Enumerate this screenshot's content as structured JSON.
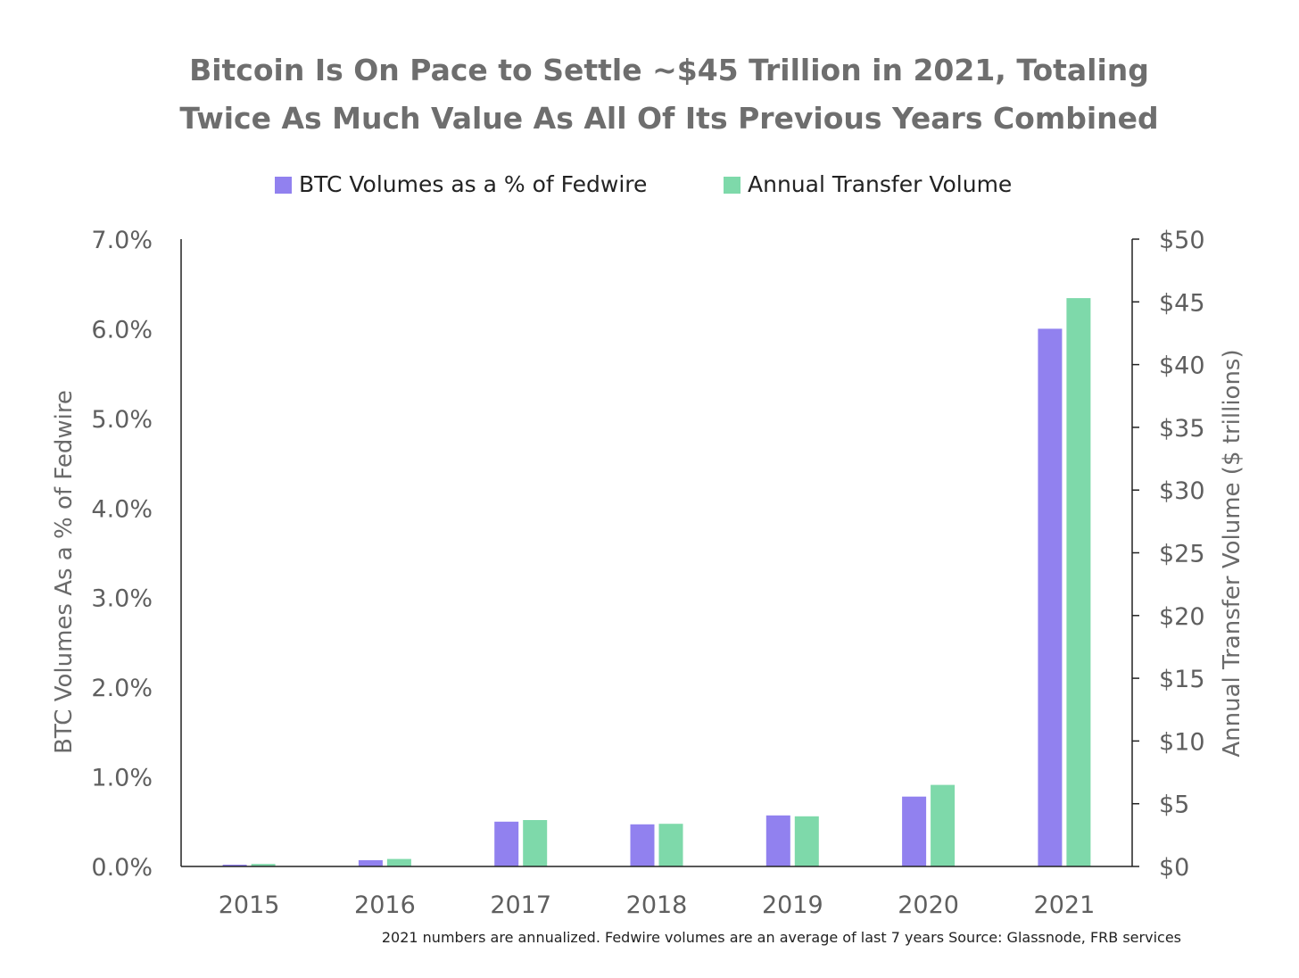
{
  "chart_data": {
    "type": "bar",
    "title_lines": [
      "Bitcoin Is On Pace to Settle ~$45 Trillion in 2021, Totaling",
      "Twice As Much Value As All Of Its Previous Years Combined"
    ],
    "categories": [
      "2015",
      "2016",
      "2017",
      "2018",
      "2019",
      "2020",
      "2021"
    ],
    "series": [
      {
        "name": "BTC Volumes as a % of Fedwire",
        "axis": "left",
        "color": "#9181ef",
        "values": [
          0.02,
          0.07,
          0.5,
          0.47,
          0.57,
          0.78,
          6.0
        ]
      },
      {
        "name": "Annual Transfer Volume",
        "axis": "right",
        "color": "#7ed9aa",
        "values": [
          0.2,
          0.6,
          3.7,
          3.4,
          4.0,
          6.5,
          45.3
        ]
      }
    ],
    "y_left": {
      "label": "BTC Volumes As a % of Fedwire",
      "ylim": [
        0,
        7
      ],
      "ticks": [
        0,
        1,
        2,
        3,
        4,
        5,
        6,
        7
      ],
      "tick_labels": [
        "0.0%",
        "1.0%",
        "2.0%",
        "3.0%",
        "4.0%",
        "5.0%",
        "6.0%",
        "7.0%"
      ]
    },
    "y_right": {
      "label": "Annual Transfer Volume ($ trillions)",
      "ylim": [
        0,
        50
      ],
      "ticks": [
        0,
        5,
        10,
        15,
        20,
        25,
        30,
        35,
        40,
        45,
        50
      ],
      "tick_labels": [
        "$0",
        "$5",
        "$10",
        "$15",
        "$20",
        "$25",
        "$30",
        "$35",
        "$40",
        "$45",
        "$50"
      ]
    },
    "legend_position": "top-center",
    "grid": false,
    "footnote": "2021 numbers are annualized. Fedwire volumes are an average of last 7 years Source: Glassnode, FRB services"
  }
}
